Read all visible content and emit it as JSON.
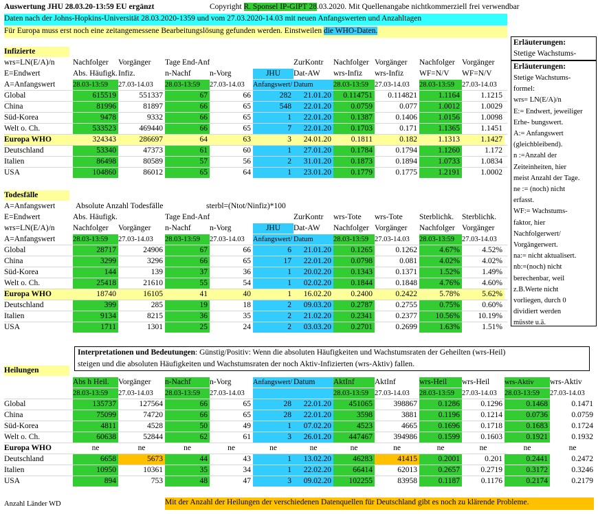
{
  "colors": {
    "green": "#33cc33",
    "cyan": "#33ccff",
    "yellow": "#ffff99",
    "orange": "#ffc000",
    "gray": "#d8d8d8"
  },
  "header": {
    "title": "Auswertung JHU 28.03.20-13:59 EU ergänzt",
    "copyright_pre": "Copyright ",
    "copyright_name": "R. Sponsel IP-GIPT 28",
    "copyright_post": ".03.2020. Mit Quellenangabe nichtkommerziell frei verwendbar",
    "source": "Daten nach der Johns-Hopkins-Universität 28.03.2020-1359 und vom 27.03.2020-14.03 mit neuen Anfangswerten und Anzahltagen",
    "europe_pre": "Für Europa muss erst noch eine zeitangemessene Bearbeitungslösung gefunden werden. Einstweilen ",
    "europe_hl": "die WHO-Daten."
  },
  "notes": {
    "title1": "Erläuterungen:",
    "subtitle": "Stetige Wachstums-",
    "title2": "Erläuterungen:",
    "lines": [
      "Stetige Wachstums-",
      "formel:",
      "wrs= LN(E/A)/n",
      "E:= Endwert, jeweiliger",
      "Erhe- bungswert.",
      "A:= Anfangswert",
      "(gleichbleibend).",
      "n :=Anzahl der",
      "Zeiteinheiten, hier",
      "meist Anzahl der Tage.",
      "ne := (noch) nicht",
      "erfasst.",
      "WF:= Wachstums-",
      "faktor, hier",
      "Nachfolgerwert/",
      "Vorgängerwert.",
      "na:= nicht aktualisert.",
      "nb:=(noch)  nicht",
      "berechenbar, weil",
      "z.B.Werte nicht",
      "vorliegen, durch 0",
      "dividiert werden",
      "müsste u.ä."
    ]
  },
  "infected": {
    "section": "Infizierte",
    "hdr1": [
      "wrs=LN(E/A)/n",
      "Nachfolger",
      "Vorgänger",
      "Tage End-Anf-Wert",
      "",
      "",
      "ZurKontr",
      "Nachfolger",
      "Vorgänger",
      "Nachfolger",
      "Vorgänger"
    ],
    "hdr2": [
      "E=Endwert",
      "Abs. Häufigk.",
      "Infiz.",
      "n-Nachf",
      "n-Vorg",
      "JHU",
      "Dat-AW",
      "wrs-Infiz",
      "wrs-Infiz",
      "WF=N/V",
      "WF=N/V"
    ],
    "hdr3": [
      "A=Anfangswert",
      "28.03-13:59",
      "27.03-14.03",
      "28.03-13:59",
      "27.03-14.03",
      "Anfangswert/",
      "Datum",
      "28.03-13:59",
      "27.03-14.03",
      "28.03-13:59",
      "27.03-14.03"
    ],
    "rows": [
      [
        "Global",
        "615519",
        "551337",
        "67",
        "66",
        "282",
        "21.01.20",
        "0.114751",
        "0.114821",
        "1.1164",
        "1.1215"
      ],
      [
        "China",
        "81996",
        "81897",
        "66",
        "65",
        "548",
        "22.01.20",
        "0.0759",
        "0.077",
        "1.0012",
        "1.0029"
      ],
      [
        "Süd-Korea",
        "9478",
        "9332",
        "66",
        "65",
        "1",
        "22.01.20",
        "0.1387",
        "0.1406",
        "1.0156",
        "1.0098"
      ],
      [
        "Welt o. Ch.",
        "533523",
        "469440",
        "66",
        "65",
        "7",
        "22.01.20",
        "0.1703",
        "0.171",
        "1.1365",
        "1.1451"
      ],
      [
        "Europa WHO",
        "324343",
        "286697",
        "64",
        "63",
        "3",
        "24.01.20",
        "0.1811",
        "0.182",
        "1.1313",
        "1.1427"
      ],
      [
        "Deutschland",
        "53340",
        "47373",
        "61",
        "60",
        "1",
        "27.01.20",
        "0.1784",
        "0.1794",
        "1.1260",
        "1.172"
      ],
      [
        "Italien",
        "86498",
        "80589",
        "57",
        "56",
        "2",
        "31.01.20",
        "0.1873",
        "0.1894",
        "1.0733",
        "1.0834"
      ],
      [
        "USA",
        "104860",
        "86012",
        "65",
        "64",
        "1",
        "23.01.20",
        "0.1779",
        "0.1775",
        "1.2191",
        "1.0002"
      ]
    ]
  },
  "deaths": {
    "section": "Todesfälle",
    "line1a": "A=Anfangswert",
    "line1b": "Absolute Anzahl Todesfälle",
    "line1c": "sterbl=(Ntot/Ninfiz)*100",
    "hdr1": [
      "E=Endwert",
      "Abs. Häufigk. Tote",
      "",
      "Tage End-Anf-Wert",
      "",
      "",
      "ZurKontr",
      "wrs-Tote",
      "wrs-Tote",
      "Sterblichk.",
      "Sterblichk."
    ],
    "hdr2": [
      "wrs=LN(E/A)/n",
      "Nachfolger",
      "Vorgänger",
      "n-Nachf",
      "n-Vorg",
      "JHU",
      "Dat-AW",
      "Nachfolger",
      "Vorgänger",
      "Nachfolger",
      "Vorgänger"
    ],
    "hdr3": [
      "A=Anfangswert",
      "28.03-13:59",
      "27.03-14.03",
      "28.03-13:59",
      "27.03-14.03",
      "Anfangswert/",
      "Datum",
      "28.03-13:59",
      "27.03-14.03",
      "28.03-13:59",
      "27.03-14.03"
    ],
    "rows": [
      [
        "Global",
        "28717",
        "24906",
        "67",
        "66",
        "6",
        "21.01.20",
        "0.1265",
        "0.1262",
        "4.67%",
        "4.52%"
      ],
      [
        "China",
        "3299",
        "3296",
        "66",
        "65",
        "17",
        "22.01.20",
        "0.0798",
        "0.081",
        "4.02%",
        "4.02%"
      ],
      [
        "Süd-Korea",
        "144",
        "139",
        "37",
        "36",
        "1",
        "20.02.20",
        "0.1343",
        "0.1371",
        "1.52%",
        "1.49%"
      ],
      [
        "Welt o. Ch.",
        "25418",
        "21610",
        "55",
        "54",
        "1",
        "02.02.20",
        "0.1844",
        "0.1848",
        "4.76%",
        "4.60%"
      ],
      [
        "Europa WHO",
        "18740",
        "16105",
        "41",
        "40",
        "1",
        "16.02.20",
        "0.2400",
        "0.2422",
        "5.78%",
        "5.62%"
      ],
      [
        "Deutschland",
        "399",
        "285",
        "19",
        "18",
        "2",
        "09.03.20",
        "0.2787",
        "0.2755",
        "0.75%",
        "0.60%"
      ],
      [
        "Italien",
        "9134",
        "8215",
        "36",
        "35",
        "2",
        "21.02.20",
        "0.2341",
        "0.2377",
        "10.56%",
        "10.19%"
      ],
      [
        "USA",
        "1711",
        "1301",
        "25",
        "24",
        "2",
        "03.03.20",
        "0.2701",
        "0.2699",
        "1.63%",
        "1.51%"
      ]
    ]
  },
  "interp": {
    "label": "Interpretationen und Bedeutungen",
    "text1": ": Günstig/Positiv: Wenn die absoluten Häufigkeiten und Wachstumsraten der Geheilten (wrs-Heil)",
    "text2": "steigen und die absoluten Häufigkeiten und Wachstumsraten der noch Aktiv-Infizierten (wrs-Aktiv) fallen."
  },
  "healed": {
    "section": "Heilungen",
    "hdr1": [
      "Abs h Heil.",
      "Vorgänger",
      "n-Nachf",
      "n-Vorg",
      "Anfangswert/",
      "Datum",
      "AktInf",
      "AktInf",
      "wrs-Heil",
      "wrs-Heil",
      "wrs-Aktiv",
      "wrs-Aktiv"
    ],
    "hdr2": [
      "28.03-13:59",
      "27.03-14.03",
      "28.03-13:59",
      "27.03-14.03",
      "",
      "",
      "28.03-13:59",
      "27.03-14.03",
      "28.03-13:59",
      "27.03-14.03",
      "28.03-13:59",
      "27.03-14.03"
    ],
    "rows": [
      [
        "Global",
        "135737",
        "127564",
        "66",
        "65",
        "28",
        "22.01.20",
        "451065",
        "398867",
        "0.1286",
        "0.1296",
        "0.1468",
        "0.1471"
      ],
      [
        "China",
        "75099",
        "74720",
        "66",
        "65",
        "28",
        "22.01.20",
        "3598",
        "3881",
        "0.1196",
        "0.1214",
        "0.0736",
        "0.0759"
      ],
      [
        "Süd-Korea",
        "4811",
        "4528",
        "50",
        "49",
        "1",
        "07.02.20",
        "4523",
        "4665",
        "0.1696",
        "0.1718",
        "0.1683",
        "0.1724"
      ],
      [
        "Welt o. Ch.",
        "60638",
        "52844",
        "62",
        "61",
        "3",
        "26.01.20",
        "447467",
        "394986",
        "0.1599",
        "0.1603",
        "0.1921",
        "0.1932"
      ],
      [
        "Europa WHO",
        "ne",
        "ne",
        "ne",
        "ne",
        "ne",
        "ne",
        "ne",
        "ne",
        "ne",
        "ne",
        "ne",
        "ne"
      ],
      [
        "Deutschland",
        "6658",
        "5673",
        "44",
        "43",
        "1",
        "13.02.20",
        "46283",
        "41415",
        "0.2001",
        "0.201",
        "0.2441",
        "0.2472"
      ],
      [
        "Italien",
        "10950",
        "10361",
        "35",
        "34",
        "1",
        "22.02.20",
        "66414",
        "62013",
        "0.2657",
        "0.2719",
        "0.3172",
        "0.3246"
      ],
      [
        "USA",
        "894",
        "753",
        "48",
        "47",
        "3",
        "09.02.20",
        "102255",
        "83958",
        "0.1187",
        "0.1176",
        "0.2174",
        "0.2179"
      ]
    ]
  },
  "footer": {
    "left": "Anzahl Länder WD",
    "right": "Mit der Anzahl der Heilungen der verschiedenen Datenquellen  für Deutschland gibt es noch zu klärende Probleme."
  }
}
